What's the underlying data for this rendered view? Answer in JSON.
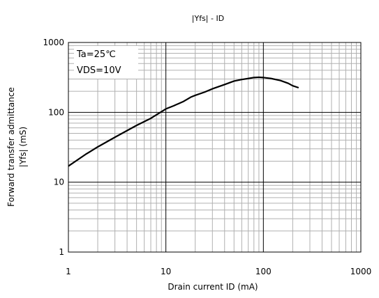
{
  "chart_data": {
    "type": "line",
    "title": "|Yfs| - ID",
    "xlabel": "Drain current ID (mA)",
    "ylabel_line1": "Forward transfer admittance",
    "ylabel_line2": "|Yfs|  (mS)",
    "x_scale": "log",
    "y_scale": "log",
    "xlim": [
      1,
      1000
    ],
    "ylim": [
      1,
      1000
    ],
    "x_ticks": [
      "1",
      "10",
      "100",
      "1000"
    ],
    "y_ticks": [
      "1",
      "10",
      "100",
      "1000"
    ],
    "grid": true,
    "annotations": [
      "Ta=25℃",
      "VDS=10V"
    ],
    "series": [
      {
        "color": "#000000",
        "x": [
          1,
          1.5,
          2,
          3,
          5,
          7,
          9,
          10,
          12,
          15,
          18,
          20,
          25,
          30,
          40,
          50,
          60,
          70,
          80,
          90,
          100,
          120,
          150,
          180,
          200,
          230
        ],
        "y": [
          17,
          25,
          32,
          44,
          65,
          82,
          102,
          112,
          124,
          142,
          165,
          175,
          195,
          217,
          250,
          280,
          295,
          305,
          315,
          318,
          315,
          305,
          285,
          260,
          240,
          225
        ]
      }
    ]
  }
}
